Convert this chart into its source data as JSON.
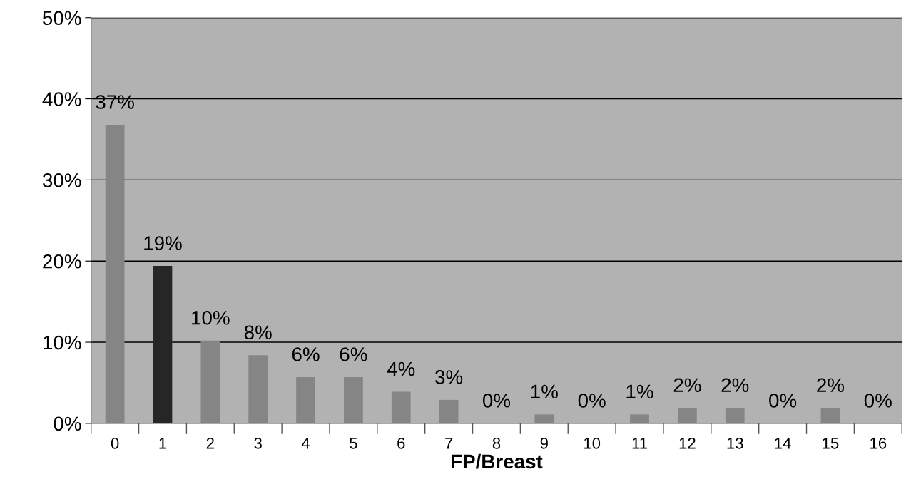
{
  "chart_data": {
    "type": "bar",
    "xlabel": "FP/Breast",
    "categories": [
      "0",
      "1",
      "2",
      "3",
      "4",
      "5",
      "6",
      "7",
      "8",
      "9",
      "10",
      "11",
      "12",
      "13",
      "14",
      "15",
      "16"
    ],
    "values": [
      36.8,
      19.4,
      10.2,
      8.4,
      5.7,
      5.7,
      3.9,
      2.9,
      0,
      1.1,
      0,
      1.1,
      1.9,
      1.9,
      0,
      1.9,
      0
    ],
    "colors": [
      "#858585",
      "#262626",
      "#858585",
      "#858585",
      "#858585",
      "#858585",
      "#858585",
      "#858585",
      "#858585",
      "#858585",
      "#858585",
      "#858585",
      "#858585",
      "#858585",
      "#858585",
      "#858585",
      "#858585"
    ],
    "value_labels": [
      "37%",
      "19%",
      "10%",
      "8%",
      "6%",
      "6%",
      "4%",
      "3%",
      "0%",
      "1%",
      "0%",
      "1%",
      "2%",
      "2%",
      "0%",
      "2%",
      "0%"
    ],
    "ylim": [
      0,
      50
    ],
    "yticks": [
      {
        "value": 0,
        "label": "0%"
      },
      {
        "value": 10,
        "label": "10%"
      },
      {
        "value": 20,
        "label": "20%"
      },
      {
        "value": 30,
        "label": "30%"
      },
      {
        "value": 40,
        "label": "40%"
      },
      {
        "value": 50,
        "label": "50%"
      }
    ],
    "grid": "y"
  }
}
